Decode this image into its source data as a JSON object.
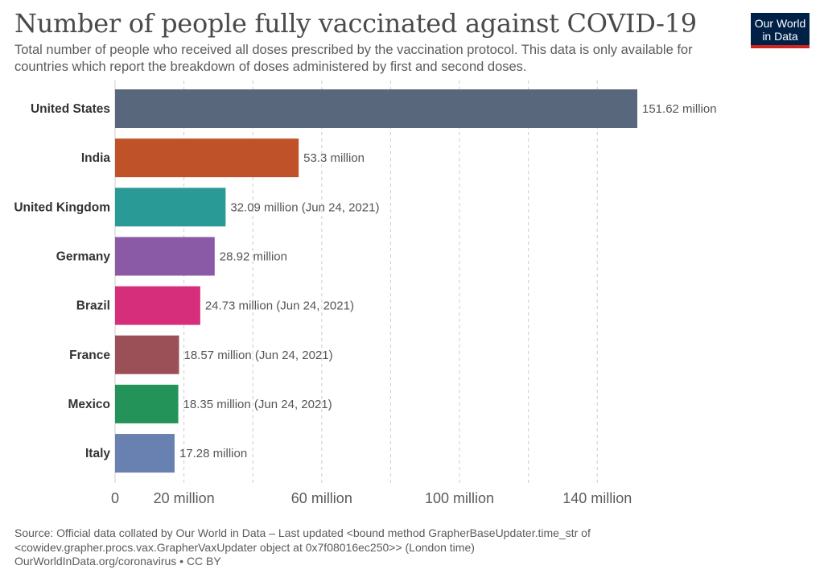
{
  "header": {
    "title": "Number of people fully vaccinated against COVID-19",
    "subtitle": "Total number of people who received all doses prescribed by the vaccination protocol. This data is only available for countries which report the breakdown of doses administered by first and second doses."
  },
  "logo": {
    "line1": "Our World",
    "line2": "in Data",
    "bg_color": "#002147",
    "accent_color": "#ce261e"
  },
  "chart_data": {
    "type": "bar",
    "orientation": "horizontal",
    "title": "Number of people fully vaccinated against COVID-19",
    "xlabel": "",
    "ylabel": "",
    "xlim": [
      0,
      151.62
    ],
    "grid": true,
    "categories": [
      "United States",
      "India",
      "United Kingdom",
      "Germany",
      "Brazil",
      "France",
      "Mexico",
      "Italy"
    ],
    "values": [
      151.62,
      53.3,
      32.09,
      28.92,
      24.73,
      18.57,
      18.35,
      17.28
    ],
    "value_labels": [
      "151.62 million",
      "53.3 million",
      "32.09 million (Jun 24, 2021)",
      "28.92 million",
      "24.73 million (Jun 24, 2021)",
      "18.57 million (Jun 24, 2021)",
      "18.35 million (Jun 24, 2021)",
      "17.28 million"
    ],
    "colors": [
      "#58677c",
      "#c0522a",
      "#2a9a97",
      "#8a5aa6",
      "#d62e7a",
      "#9b4f56",
      "#23935a",
      "#6981b0"
    ],
    "gridlines": [
      0,
      20,
      40,
      60,
      80,
      100,
      120,
      140
    ],
    "x_ticks": [
      {
        "value": 0,
        "label": "0"
      },
      {
        "value": 20,
        "label": "20 million"
      },
      {
        "value": 60,
        "label": "60 million"
      },
      {
        "value": 100,
        "label": "100 million"
      },
      {
        "value": 140,
        "label": "140 million"
      }
    ]
  },
  "footer": {
    "source": "Source: Official data collated by Our World in Data – Last updated <bound method GrapherBaseUpdater.time_str of",
    "source_cont": "<cowidev.grapher.procs.vax.GrapherVaxUpdater object at 0x7f08016ec250>> (London time)",
    "credit": "OurWorldInData.org/coronavirus • CC BY"
  }
}
